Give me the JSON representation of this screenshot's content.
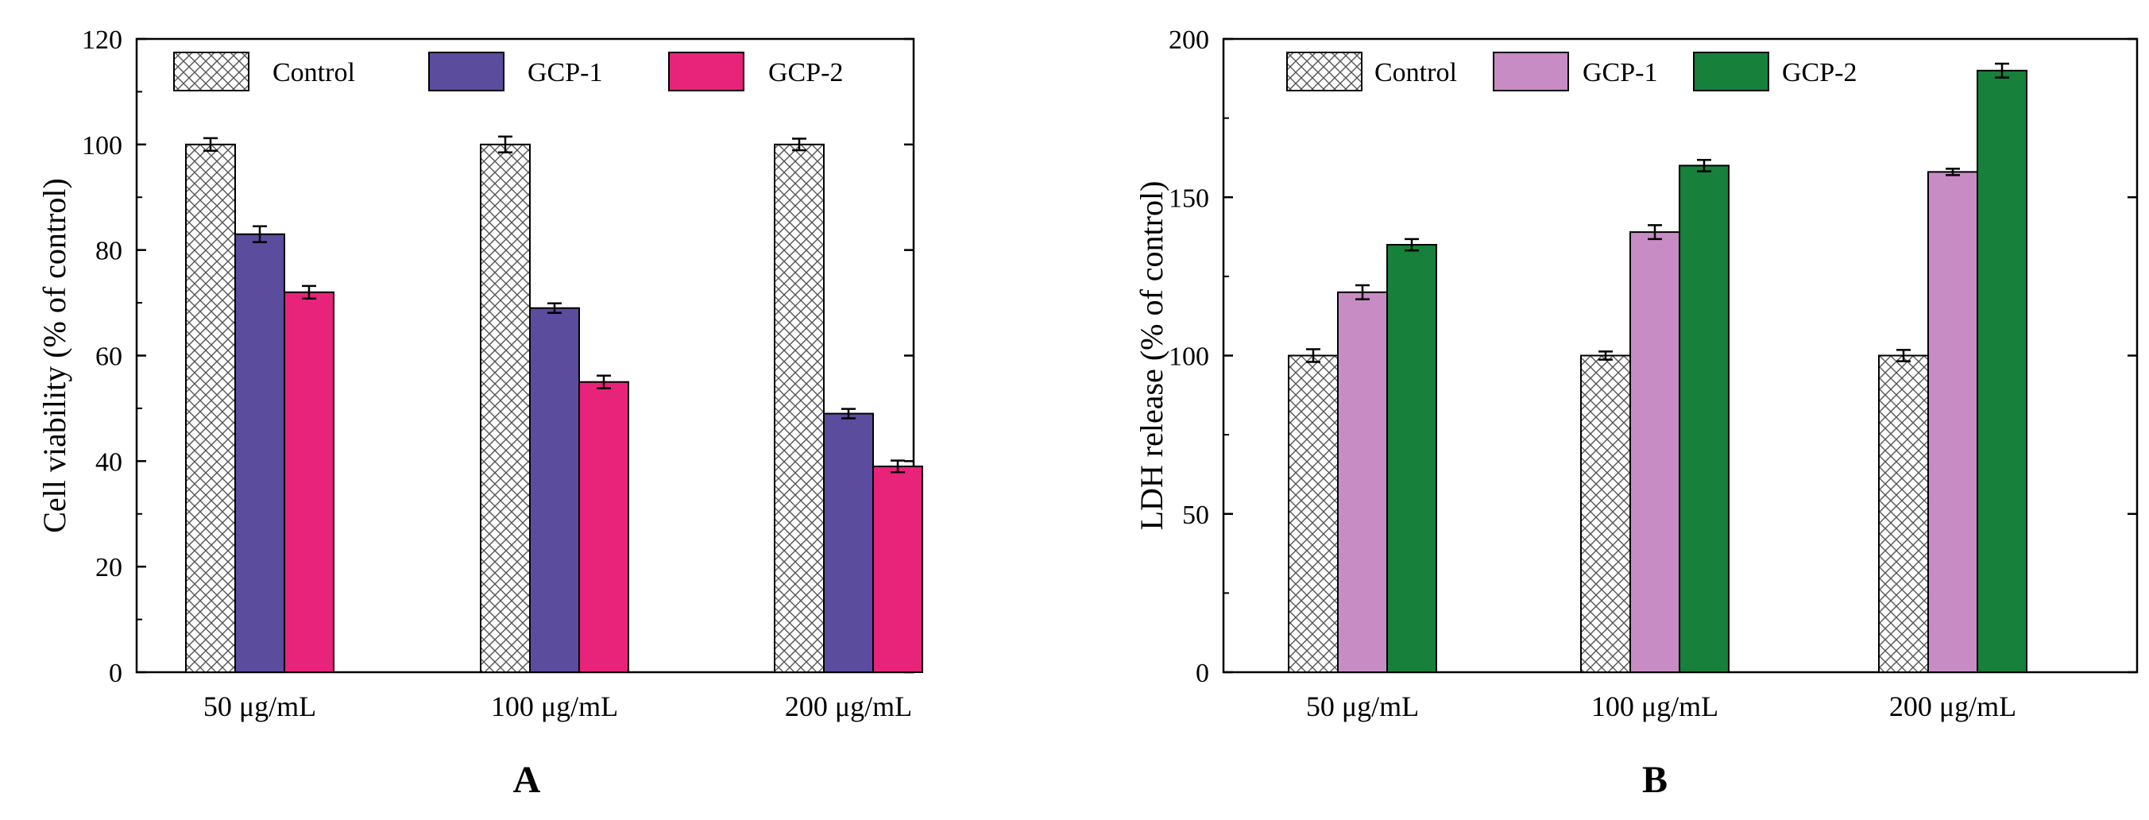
{
  "chart_data": [
    {
      "type": "bar",
      "panel_label": "A",
      "title": "",
      "xlabel": "",
      "ylabel": "Cell viability (% of control)",
      "ylim": [
        0,
        120
      ],
      "yticks": [
        0,
        20,
        40,
        60,
        80,
        100,
        120
      ],
      "categories": [
        "50 μg/mL",
        "100 μg/mL",
        "200 μg/mL"
      ],
      "legend_position": "top",
      "series": [
        {
          "name": "Control",
          "color": "#ffffff",
          "pattern": "crosshatch",
          "values": [
            100,
            100,
            100
          ],
          "errors": [
            1.2,
            1.5,
            1.1
          ]
        },
        {
          "name": "GCP-1",
          "color": "#5b4c9e",
          "pattern": "solid",
          "values": [
            83,
            69,
            49
          ],
          "errors": [
            1.5,
            0.9,
            0.9
          ]
        },
        {
          "name": "GCP-2",
          "color": "#e8237a",
          "pattern": "solid",
          "values": [
            72,
            55,
            39
          ],
          "errors": [
            1.2,
            1.2,
            1.1
          ]
        }
      ]
    },
    {
      "type": "bar",
      "panel_label": "B",
      "title": "",
      "xlabel": "",
      "ylabel": "LDH release (% of control)",
      "ylim": [
        0,
        200
      ],
      "yticks": [
        0,
        50,
        100,
        150,
        200
      ],
      "categories": [
        "50 μg/mL",
        "100 μg/mL",
        "200 μg/mL"
      ],
      "legend_position": "top",
      "series": [
        {
          "name": "Control",
          "color": "#ffffff",
          "pattern": "crosshatch",
          "values": [
            100,
            100,
            100
          ],
          "errors": [
            2.0,
            1.3,
            1.8
          ]
        },
        {
          "name": "GCP-1",
          "color": "#c88cc4",
          "pattern": "solid",
          "values": [
            120,
            139,
            158
          ],
          "errors": [
            2.2,
            2.2,
            1.0
          ]
        },
        {
          "name": "GCP-2",
          "color": "#17803a",
          "pattern": "solid",
          "values": [
            135,
            160,
            190
          ],
          "errors": [
            1.8,
            1.8,
            2.2
          ]
        }
      ]
    }
  ]
}
